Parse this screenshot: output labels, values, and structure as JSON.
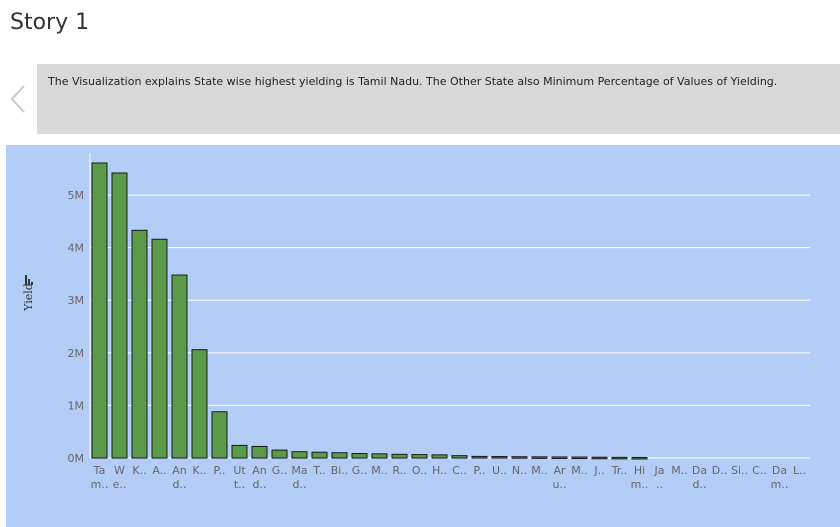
{
  "story": {
    "title": "Story 1"
  },
  "caption": {
    "text": "The Visualization explains State wise highest yielding is Tamil Nadu. The Other State also Minimum Percentage of Values of Yielding."
  },
  "icons": {
    "prev": "chevron-left-icon",
    "sort": "sort-icon"
  },
  "colors": {
    "bar": "#5b9a4a",
    "bar_stroke": "#1a1a1a",
    "plot_bg": "#b4cdf7",
    "caption_bg": "#d9d9d9",
    "grid": "#ffffff"
  },
  "chart_data": {
    "type": "bar",
    "ylabel": "Yield",
    "ylim": [
      0,
      5800000
    ],
    "yticks": [
      {
        "value": 0,
        "label": "0M"
      },
      {
        "value": 1000000,
        "label": "1M"
      },
      {
        "value": 2000000,
        "label": "2M"
      },
      {
        "value": 3000000,
        "label": "3M"
      },
      {
        "value": 4000000,
        "label": "4M"
      },
      {
        "value": 5000000,
        "label": "5M"
      }
    ],
    "grid": true,
    "categories": [
      [
        "Ta",
        "m.."
      ],
      [
        "W",
        "e.."
      ],
      [
        "K.."
      ],
      [
        "A.."
      ],
      [
        "An",
        "d.."
      ],
      [
        "K.."
      ],
      [
        "P.."
      ],
      [
        "Ut",
        "t.."
      ],
      [
        "An",
        "d.."
      ],
      [
        "G.."
      ],
      [
        "Ma",
        "d.."
      ],
      [
        "T.."
      ],
      [
        "Bi.."
      ],
      [
        "G.."
      ],
      [
        "M.."
      ],
      [
        "R.."
      ],
      [
        "O.."
      ],
      [
        "H.."
      ],
      [
        "C.."
      ],
      [
        "P.."
      ],
      [
        "U.."
      ],
      [
        "N.."
      ],
      [
        "M.."
      ],
      [
        "Ar",
        "u.."
      ],
      [
        "M.."
      ],
      [
        "J.."
      ],
      [
        "Tr.."
      ],
      [
        "Hi",
        "m.."
      ],
      [
        "Ja",
        ".."
      ],
      [
        "M.."
      ],
      [
        "Da",
        "d.."
      ],
      [
        "D.."
      ],
      [
        "Si.."
      ],
      [
        "C.."
      ],
      [
        "Da",
        "m.."
      ],
      [
        "L.."
      ]
    ],
    "values": [
      5610000,
      5420000,
      4330000,
      4160000,
      3480000,
      2060000,
      880000,
      240000,
      220000,
      150000,
      120000,
      110000,
      100000,
      85000,
      80000,
      70000,
      65000,
      60000,
      45000,
      30000,
      28000,
      25000,
      22000,
      20000,
      18000,
      15000,
      12000,
      10000,
      0,
      0,
      0,
      0,
      0,
      0,
      0,
      0
    ]
  }
}
